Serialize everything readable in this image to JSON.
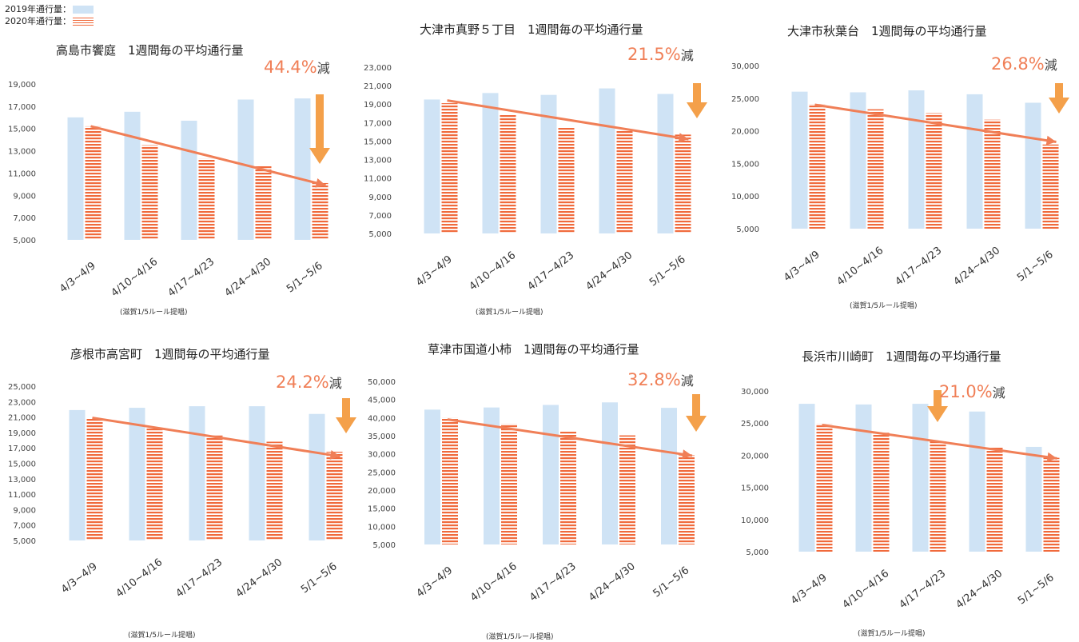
{
  "legend": {
    "label_2019": "2019年通行量：",
    "label_2020": "2020年通行量：",
    "color_2019": "#cfe3f5",
    "color_2020": "#f06a3c"
  },
  "trend_color": "#f07f57",
  "arrow_color": "#f4a04a",
  "chart_data": [
    {
      "type": "bar",
      "title": "高島市饗庭　1週間毎の平均通行量",
      "reduction": "44.4%",
      "reduction_suffix": "減",
      "note": "(滋賀1/5ルール提唱)",
      "categories": [
        "4/3~4/9",
        "4/10~4/16",
        "4/17~4/23",
        "4/24~4/30",
        "5/1~5/6"
      ],
      "series": [
        {
          "name": "2019年通行量",
          "values": [
            16000,
            16500,
            15700,
            17600,
            17700
          ]
        },
        {
          "name": "2020年通行量",
          "values": [
            15200,
            13500,
            12300,
            11700,
            10100
          ]
        }
      ],
      "yticks": [
        "5,000",
        "7,000",
        "9,000",
        "11,000",
        "13,000",
        "15,000",
        "17,000",
        "19,000"
      ],
      "ylim": [
        5000,
        19000
      ],
      "trend": [
        15200,
        9900
      ]
    },
    {
      "type": "bar",
      "title": "大津市真野５丁目　1週間毎の平均通行量",
      "reduction": "21.5%",
      "reduction_suffix": "減",
      "note": "(滋賀1/5ルール提唱)",
      "categories": [
        "4/3~4/9",
        "4/10~4/16",
        "4/17~4/23",
        "4/24~4/30",
        "5/1~5/6"
      ],
      "series": [
        {
          "name": "2019年通行量",
          "values": [
            19500,
            20200,
            20000,
            20700,
            20100
          ]
        },
        {
          "name": "2020年通行量",
          "values": [
            19100,
            17900,
            16500,
            16200,
            15700
          ]
        }
      ],
      "yticks": [
        "5,000",
        "7,000",
        "9,000",
        "11,000",
        "13,000",
        "15,000",
        "17,000",
        "19,000",
        "21,000",
        "23,000"
      ],
      "ylim": [
        5000,
        23000
      ],
      "trend": [
        19400,
        15200
      ]
    },
    {
      "type": "bar",
      "title": "大津市秋葉台　1週間毎の平均通行量",
      "reduction": "26.8%",
      "reduction_suffix": "減",
      "note": "(滋賀1/5ルール提唱)",
      "categories": [
        "4/3~4/9",
        "4/10~4/16",
        "4/17~4/23",
        "4/24~4/30",
        "5/1~5/6"
      ],
      "series": [
        {
          "name": "2019年通行量",
          "values": [
            26000,
            25900,
            26200,
            25600,
            24300
          ]
        },
        {
          "name": "2020年通行量",
          "values": [
            24100,
            23300,
            22700,
            21700,
            17900
          ]
        }
      ],
      "yticks": [
        "5,000",
        "10,000",
        "15,000",
        "20,000",
        "25,000",
        "30,000"
      ],
      "ylim": [
        5000,
        30000
      ],
      "trend": [
        24000,
        18300
      ]
    },
    {
      "type": "bar",
      "title": "彦根市高宮町　1週間毎の平均通行量",
      "reduction": "24.2%",
      "reduction_suffix": "減",
      "note": "(滋賀1/5ルール提唱)",
      "categories": [
        "4/3~4/9",
        "4/10~4/16",
        "4/17~4/23",
        "4/24~4/30",
        "5/1~5/6"
      ],
      "series": [
        {
          "name": "2019年通行量",
          "values": [
            21900,
            22200,
            22400,
            22400,
            21400
          ]
        },
        {
          "name": "2020年通行量",
          "values": [
            20900,
            19500,
            18600,
            17800,
            16500
          ]
        }
      ],
      "yticks": [
        "5,000",
        "7,000",
        "9,000",
        "11,000",
        "13,000",
        "15,000",
        "17,000",
        "19,000",
        "21,000",
        "23,000",
        "25,000"
      ],
      "ylim": [
        5000,
        25000
      ],
      "trend": [
        20900,
        15900
      ]
    },
    {
      "type": "bar",
      "title": "草津市国道小柿　1週間毎の平均通行量",
      "reduction": "32.8%",
      "reduction_suffix": "減",
      "note": "(滋賀1/5ルール提唱)",
      "categories": [
        "4/3~4/9",
        "4/10~4/16",
        "4/17~4/23",
        "4/24~4/30",
        "5/1~5/6"
      ],
      "series": [
        {
          "name": "2019年通行量",
          "values": [
            42200,
            42800,
            43500,
            44200,
            42700
          ]
        },
        {
          "name": "2020年通行量",
          "values": [
            40000,
            38300,
            36100,
            35100,
            29600
          ]
        }
      ],
      "yticks": [
        "5,000",
        "10,000",
        "15,000",
        "20,000",
        "25,000",
        "30,000",
        "35,000",
        "40,000",
        "45,000",
        "50,000"
      ],
      "ylim": [
        5000,
        50000
      ],
      "trend": [
        39500,
        29500
      ]
    },
    {
      "type": "bar",
      "title": "長浜市川崎町　1週間毎の平均通行量",
      "reduction": "21.0%",
      "reduction_suffix": "減",
      "note": "(滋賀1/5ルール提唱)",
      "categories": [
        "4/3~4/9",
        "4/10~4/16",
        "4/17~4/23",
        "4/24~4/30",
        "5/1~5/6"
      ],
      "series": [
        {
          "name": "2019年通行量",
          "values": [
            28000,
            27900,
            28000,
            26800,
            21300
          ]
        },
        {
          "name": "2020年通行量",
          "values": [
            24900,
            23500,
            22300,
            21200,
            19600
          ]
        }
      ],
      "yticks": [
        "5,000",
        "10,000",
        "15,000",
        "20,000",
        "25,000",
        "30,000"
      ],
      "ylim": [
        5000,
        30000
      ],
      "trend": [
        24700,
        19500
      ]
    }
  ]
}
